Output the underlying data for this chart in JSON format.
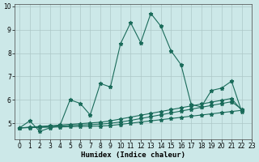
{
  "xlabel": "Humidex (Indice chaleur)",
  "bg_color": "#cce8e8",
  "line_color": "#1a6b5a",
  "grid_color": "#adc8c8",
  "xlim": [
    -0.5,
    23
  ],
  "ylim": [
    4.3,
    10.1
  ],
  "yticks": [
    5,
    6,
    7,
    8,
    9,
    10
  ],
  "xticks": [
    0,
    1,
    2,
    3,
    4,
    5,
    6,
    7,
    8,
    9,
    10,
    11,
    12,
    13,
    14,
    15,
    16,
    17,
    18,
    19,
    20,
    21,
    22,
    23
  ],
  "series1": [
    4.8,
    5.1,
    4.65,
    4.8,
    4.9,
    6.0,
    5.85,
    5.35,
    6.7,
    6.55,
    8.4,
    9.3,
    8.45,
    9.7,
    9.15,
    8.1,
    7.5,
    5.8,
    5.7,
    6.4,
    6.5,
    6.8,
    5.5
  ],
  "series2": [
    4.8,
    4.83,
    4.86,
    4.89,
    4.92,
    4.95,
    4.98,
    5.01,
    5.04,
    5.1,
    5.18,
    5.26,
    5.34,
    5.42,
    5.5,
    5.58,
    5.66,
    5.74,
    5.82,
    5.9,
    5.98,
    6.06,
    5.55
  ],
  "series3": [
    4.8,
    4.81,
    4.82,
    4.83,
    4.84,
    4.85,
    4.86,
    4.87,
    4.88,
    4.9,
    4.95,
    5.0,
    5.05,
    5.1,
    5.15,
    5.2,
    5.25,
    5.3,
    5.35,
    5.4,
    5.45,
    5.5,
    5.55
  ],
  "series4": [
    4.8,
    4.82,
    4.84,
    4.86,
    4.88,
    4.9,
    4.92,
    4.94,
    4.96,
    5.0,
    5.05,
    5.12,
    5.2,
    5.28,
    5.36,
    5.44,
    5.52,
    5.6,
    5.68,
    5.76,
    5.84,
    5.92,
    5.6
  ],
  "tick_fontsize": 5.5,
  "label_fontsize": 6.5
}
